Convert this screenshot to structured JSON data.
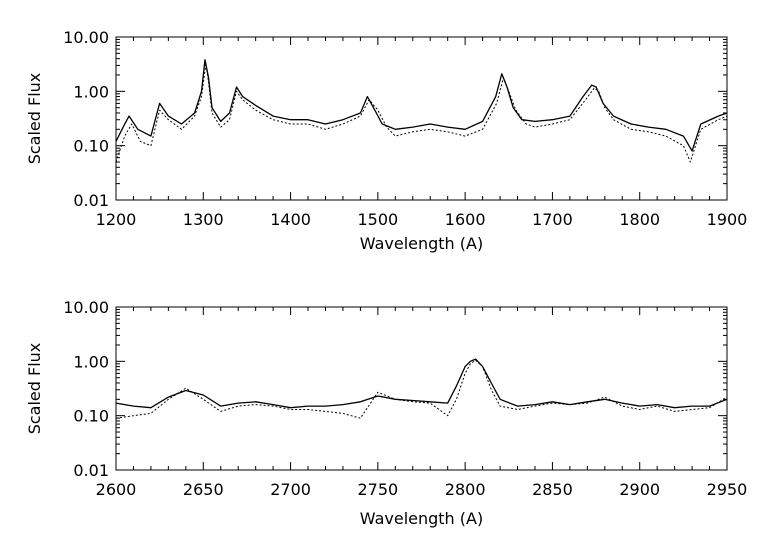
{
  "chart_data": [
    {
      "type": "line",
      "xlabel": "Wavelength (A)",
      "ylabel": "Scaled Flux",
      "xlim": [
        1200,
        1900
      ],
      "ylim": [
        0.01,
        10.0
      ],
      "yscale": "log",
      "x_ticks": [
        "1200",
        "1300",
        "1400",
        "1500",
        "1600",
        "1700",
        "1800",
        "1900"
      ],
      "y_ticks": [
        "0.01",
        "0.10",
        "1.00",
        "10.00"
      ],
      "grid": false,
      "series": [
        {
          "style": "solid",
          "x": [
            1200,
            1210,
            1215,
            1225,
            1240,
            1250,
            1260,
            1275,
            1290,
            1298,
            1302,
            1306,
            1310,
            1320,
            1330,
            1338,
            1345,
            1360,
            1380,
            1400,
            1420,
            1440,
            1460,
            1480,
            1488,
            1495,
            1505,
            1520,
            1540,
            1560,
            1580,
            1600,
            1620,
            1635,
            1642,
            1648,
            1655,
            1665,
            1680,
            1700,
            1720,
            1735,
            1745,
            1750,
            1758,
            1770,
            1790,
            1810,
            1830,
            1850,
            1860,
            1870,
            1890,
            1900
          ],
          "y": [
            0.12,
            0.25,
            0.35,
            0.2,
            0.15,
            0.6,
            0.35,
            0.25,
            0.4,
            1.0,
            3.8,
            1.8,
            0.5,
            0.28,
            0.4,
            1.2,
            0.8,
            0.55,
            0.35,
            0.3,
            0.3,
            0.25,
            0.3,
            0.4,
            0.8,
            0.5,
            0.25,
            0.2,
            0.22,
            0.25,
            0.22,
            0.2,
            0.28,
            0.8,
            2.1,
            1.2,
            0.5,
            0.3,
            0.28,
            0.3,
            0.35,
            0.8,
            1.3,
            1.2,
            0.6,
            0.35,
            0.25,
            0.22,
            0.2,
            0.15,
            0.08,
            0.25,
            0.35,
            0.4
          ]
        },
        {
          "style": "dotted",
          "x": [
            1200,
            1210,
            1218,
            1228,
            1240,
            1250,
            1260,
            1275,
            1290,
            1298,
            1303,
            1306,
            1310,
            1320,
            1330,
            1338,
            1345,
            1360,
            1380,
            1400,
            1420,
            1440,
            1460,
            1480,
            1490,
            1500,
            1510,
            1520,
            1540,
            1560,
            1580,
            1600,
            1620,
            1636,
            1644,
            1650,
            1658,
            1670,
            1680,
            1700,
            1720,
            1738,
            1748,
            1753,
            1760,
            1770,
            1790,
            1810,
            1830,
            1850,
            1858,
            1870,
            1890,
            1900
          ],
          "y": [
            0.05,
            0.15,
            0.25,
            0.12,
            0.1,
            0.45,
            0.3,
            0.2,
            0.35,
            0.8,
            3.2,
            1.5,
            0.4,
            0.22,
            0.3,
            1.0,
            0.7,
            0.45,
            0.3,
            0.25,
            0.25,
            0.2,
            0.25,
            0.35,
            0.7,
            0.45,
            0.22,
            0.15,
            0.18,
            0.2,
            0.18,
            0.15,
            0.2,
            0.6,
            1.8,
            1.0,
            0.45,
            0.25,
            0.22,
            0.25,
            0.3,
            0.7,
            1.15,
            1.0,
            0.5,
            0.3,
            0.2,
            0.18,
            0.15,
            0.1,
            0.05,
            0.2,
            0.3,
            0.35
          ]
        }
      ]
    },
    {
      "type": "line",
      "xlabel": "Wavelength (A)",
      "ylabel": "Scaled Flux",
      "xlim": [
        2600,
        2950
      ],
      "ylim": [
        0.01,
        10.0
      ],
      "yscale": "log",
      "x_ticks": [
        "2600",
        "2650",
        "2700",
        "2750",
        "2800",
        "2850",
        "2900",
        "2950"
      ],
      "y_ticks": [
        "0.01",
        "0.10",
        "1.00",
        "10.00"
      ],
      "grid": false,
      "series": [
        {
          "style": "solid",
          "x": [
            2600,
            2610,
            2620,
            2630,
            2640,
            2650,
            2660,
            2670,
            2680,
            2690,
            2700,
            2710,
            2720,
            2730,
            2740,
            2750,
            2760,
            2770,
            2780,
            2790,
            2795,
            2800,
            2803,
            2806,
            2810,
            2815,
            2820,
            2830,
            2840,
            2850,
            2860,
            2870,
            2880,
            2890,
            2900,
            2910,
            2920,
            2930,
            2940,
            2950
          ],
          "y": [
            0.17,
            0.15,
            0.14,
            0.22,
            0.29,
            0.24,
            0.15,
            0.17,
            0.18,
            0.16,
            0.14,
            0.15,
            0.15,
            0.16,
            0.18,
            0.23,
            0.2,
            0.19,
            0.18,
            0.17,
            0.35,
            0.8,
            1.0,
            1.1,
            0.8,
            0.4,
            0.2,
            0.15,
            0.16,
            0.18,
            0.16,
            0.18,
            0.2,
            0.17,
            0.15,
            0.16,
            0.14,
            0.15,
            0.15,
            0.2
          ]
        },
        {
          "style": "dotted",
          "x": [
            2600,
            2610,
            2620,
            2630,
            2640,
            2650,
            2660,
            2670,
            2680,
            2690,
            2700,
            2710,
            2720,
            2730,
            2740,
            2750,
            2760,
            2770,
            2780,
            2790,
            2795,
            2800,
            2803,
            2806,
            2810,
            2815,
            2820,
            2830,
            2840,
            2850,
            2860,
            2870,
            2880,
            2890,
            2900,
            2910,
            2920,
            2930,
            2940,
            2950
          ],
          "y": [
            0.09,
            0.1,
            0.11,
            0.2,
            0.32,
            0.2,
            0.12,
            0.15,
            0.16,
            0.15,
            0.13,
            0.13,
            0.12,
            0.11,
            0.09,
            0.27,
            0.2,
            0.18,
            0.17,
            0.1,
            0.2,
            0.6,
            0.9,
            1.05,
            0.8,
            0.3,
            0.15,
            0.13,
            0.15,
            0.17,
            0.16,
            0.17,
            0.22,
            0.15,
            0.13,
            0.15,
            0.12,
            0.13,
            0.14,
            0.22
          ]
        }
      ]
    }
  ]
}
